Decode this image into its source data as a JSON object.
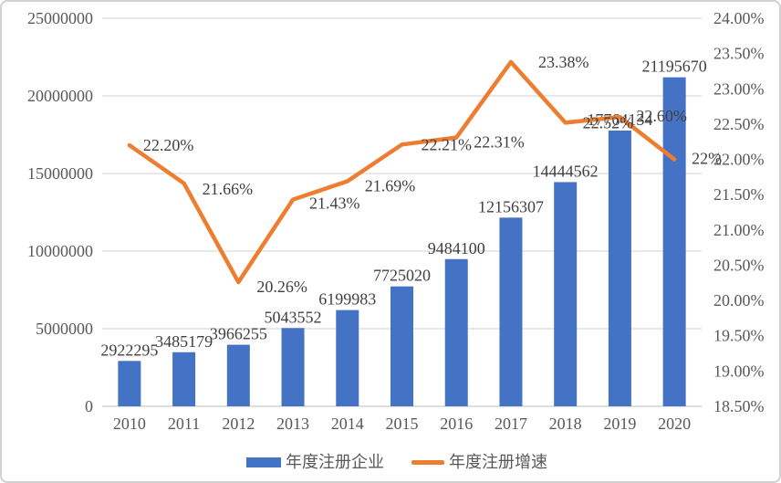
{
  "chart_data": {
    "type": "combo",
    "title": "",
    "categories": [
      "2010",
      "2011",
      "2012",
      "2013",
      "2014",
      "2015",
      "2016",
      "2017",
      "2018",
      "2019",
      "2020"
    ],
    "series": [
      {
        "name": "年度注册企业",
        "type": "bar",
        "axis": "left",
        "values": [
          2922295,
          3485179,
          3966255,
          5043552,
          6199983,
          7725020,
          9484100,
          12156307,
          14444562,
          17764134,
          21195670
        ],
        "labels": [
          "2922295",
          "3485179",
          "3966255",
          "5043552",
          "6199983",
          "7725020",
          "9484100",
          "12156307",
          "14444562",
          "17764134",
          "21195670"
        ]
      },
      {
        "name": "年度注册增速",
        "type": "line",
        "axis": "right",
        "values": [
          22.2,
          21.66,
          20.26,
          21.43,
          21.69,
          22.21,
          22.31,
          23.38,
          22.52,
          22.6,
          22.0
        ],
        "labels": [
          "22.20%",
          "21.66%",
          "20.26%",
          "21.43%",
          "21.69%",
          "22.21%",
          "22.31%",
          "23.38%",
          "22.52%",
          "22.60%",
          "22%"
        ]
      }
    ],
    "left_axis": {
      "min": 0,
      "max": 25000000,
      "step": 5000000,
      "tick_labels": [
        "0",
        "5000000",
        "10000000",
        "15000000",
        "20000000",
        "25000000"
      ]
    },
    "right_axis": {
      "min": 18.5,
      "max": 24.0,
      "step": 0.5,
      "tick_labels": [
        "18.50%",
        "19.00%",
        "19.50%",
        "20.00%",
        "20.50%",
        "21.00%",
        "21.50%",
        "22.00%",
        "22.50%",
        "23.00%",
        "23.50%",
        "24.00%"
      ]
    },
    "grid": true,
    "legend_position": "bottom"
  },
  "legend": {
    "items": [
      {
        "label": "年度注册企业"
      },
      {
        "label": "年度注册增速"
      }
    ]
  },
  "colors": {
    "bar": "#4472C4",
    "line": "#ED7D31",
    "grid": "#D9D9D9",
    "axis_line": "#C9C9C9",
    "axis_text": "#595959",
    "label_text": "#404040",
    "border": "#D0D0D0",
    "background": "#FFFFFF"
  }
}
